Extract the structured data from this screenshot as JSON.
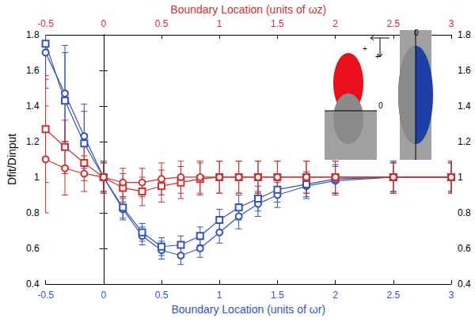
{
  "chart_data": {
    "type": "line",
    "xlabel": "Boundary Location (units of ωr)",
    "x2label": "Boundary Location (units of ωz)",
    "ylabel": "Dfit/Dinput",
    "xlim": [
      -0.5,
      3
    ],
    "xticks": [
      -0.5,
      0,
      0.5,
      1,
      1.5,
      2,
      2.5,
      3
    ],
    "x2lim": [
      -0.5,
      3
    ],
    "x2ticks": [
      -0.5,
      0,
      0.5,
      1,
      1.5,
      2,
      2.5,
      3
    ],
    "ylim": [
      0.4,
      1.8
    ],
    "yticks": [
      0.4,
      0.6,
      0.8,
      1,
      1.2,
      1.4,
      1.6,
      1.8
    ],
    "y2lim": [
      0.4,
      1.8
    ],
    "y2ticks": [
      0.4,
      0.6,
      0.8,
      1,
      1.2,
      1.4,
      1.6,
      1.8
    ],
    "grid": false,
    "series": [
      {
        "color": "#3355bb",
        "marker": "circle",
        "x": [
          -0.5,
          -0.333,
          -0.167,
          0,
          0.167,
          0.333,
          0.5,
          0.667,
          0.833,
          1,
          1.167,
          1.333,
          1.5,
          1.75,
          2,
          2.5,
          3
        ],
        "values": [
          1.7,
          1.47,
          1.23,
          1.0,
          0.82,
          0.67,
          0.59,
          0.56,
          0.6,
          0.69,
          0.78,
          0.85,
          0.9,
          0.95,
          0.98,
          1.0,
          1.0
        ],
        "errors": [
          0.2,
          0.27,
          0.18,
          0.08,
          0.06,
          0.05,
          0.05,
          0.05,
          0.05,
          0.06,
          0.07,
          0.07,
          0.07,
          0.07,
          0.08,
          0.08,
          0.08
        ]
      },
      {
        "color": "#3355bb",
        "marker": "square",
        "x": [
          -0.5,
          -0.333,
          -0.167,
          0,
          0.167,
          0.333,
          0.5,
          0.667,
          0.833,
          1,
          1.167,
          1.333,
          1.5,
          1.75,
          2,
          2.5,
          3
        ],
        "values": [
          1.75,
          1.43,
          1.19,
          1.0,
          0.83,
          0.69,
          0.61,
          0.62,
          0.67,
          0.76,
          0.83,
          0.88,
          0.93,
          0.96,
          0.99,
          1.0,
          1.0
        ],
        "errors": [
          0.2,
          0.27,
          0.18,
          0.08,
          0.06,
          0.05,
          0.05,
          0.05,
          0.05,
          0.06,
          0.07,
          0.07,
          0.07,
          0.07,
          0.08,
          0.08,
          0.08
        ]
      },
      {
        "color": "#d03030",
        "marker": "square",
        "axis": "x2",
        "x": [
          -0.5,
          -0.333,
          -0.167,
          0,
          0.167,
          0.333,
          0.5,
          0.667,
          0.833,
          1,
          1.167,
          1.333,
          1.5,
          1.75,
          2,
          2.5,
          3
        ],
        "values": [
          1.27,
          1.17,
          1.08,
          1.0,
          0.94,
          0.92,
          0.95,
          0.97,
          0.99,
          1.0,
          1.0,
          1.0,
          1.0,
          1.0,
          1.0,
          1.0,
          1.0
        ],
        "errors": [
          0.3,
          0.15,
          0.1,
          0.09,
          0.08,
          0.08,
          0.09,
          0.09,
          0.09,
          0.09,
          0.09,
          0.09,
          0.09,
          0.09,
          0.09,
          0.09,
          0.09
        ]
      },
      {
        "color": "#d03030",
        "marker": "circle",
        "axis": "x2",
        "x": [
          -0.5,
          -0.333,
          -0.167,
          0,
          0.167,
          0.333,
          0.5,
          0.667,
          0.833,
          1,
          1.167,
          1.333,
          1.5,
          1.75,
          2,
          2.5,
          3
        ],
        "values": [
          1.1,
          1.05,
          1.02,
          1.0,
          0.97,
          0.97,
          0.99,
          1.0,
          1.0,
          1.0,
          1.0,
          1.0,
          1.0,
          1.0,
          1.0,
          1.0,
          1.0
        ],
        "errors": [
          0.3,
          0.15,
          0.1,
          0.09,
          0.08,
          0.08,
          0.09,
          0.09,
          0.09,
          0.09,
          0.09,
          0.09,
          0.09,
          0.09,
          0.09,
          0.09,
          0.09
        ]
      }
    ],
    "annotations": [
      "0",
      "+",
      "+",
      "0"
    ]
  }
}
